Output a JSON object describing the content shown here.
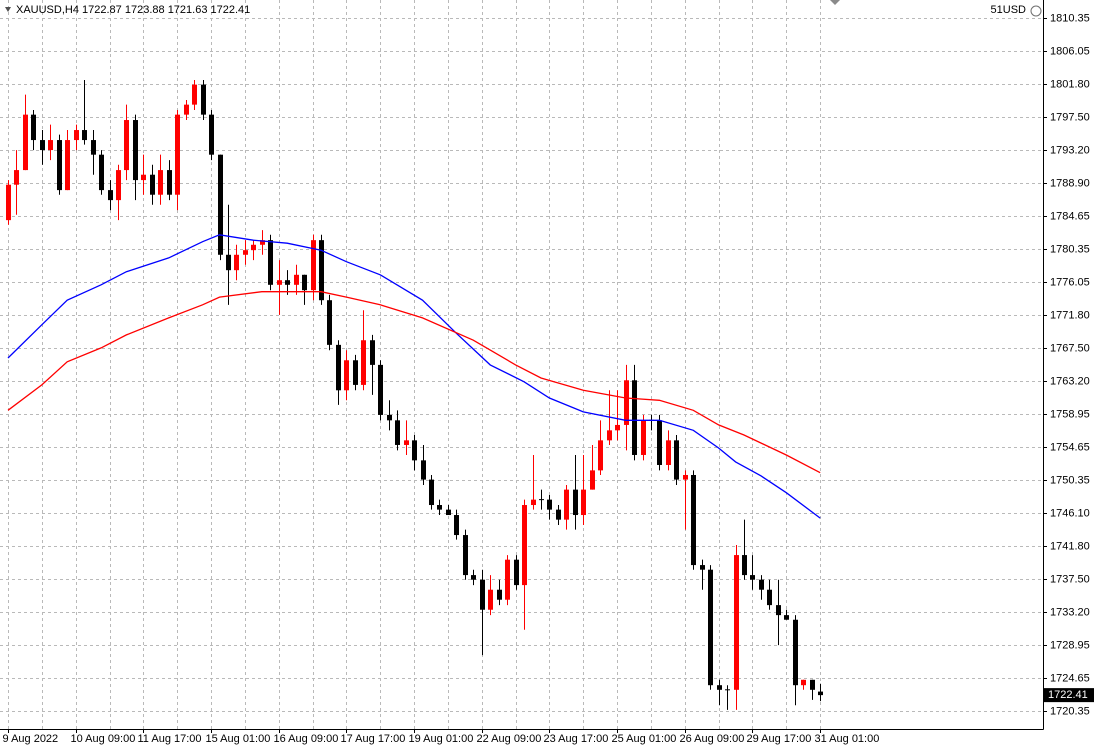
{
  "chart_data": {
    "type": "candlestick",
    "header": {
      "symbol": "XAUUSD,H4",
      "open": 1722.87,
      "high": 1723.88,
      "low": 1721.63,
      "close": 1722.41,
      "account": "51USD"
    },
    "categories": [
      "9 Aug 2022",
      null,
      null,
      null,
      null,
      null,
      null,
      null,
      "10 Aug 09:00",
      null,
      null,
      null,
      null,
      null,
      null,
      null,
      "11 Aug 17:00",
      null,
      null,
      null,
      null,
      null,
      null,
      null,
      "15 Aug 01:00",
      null,
      null,
      null,
      null,
      null,
      null,
      null,
      "16 Aug 09:00",
      null,
      null,
      null,
      null,
      null,
      null,
      null,
      "17 Aug 17:00",
      null,
      null,
      null,
      null,
      null,
      null,
      null,
      "19 Aug 01:00",
      null,
      null,
      null,
      null,
      null,
      null,
      null,
      "22 Aug 09:00",
      null,
      null,
      null,
      null,
      null,
      null,
      null,
      "23 Aug 17:00",
      null,
      null,
      null,
      null,
      null,
      null,
      null,
      "25 Aug 01:00",
      null,
      null,
      null,
      null,
      null,
      null,
      null,
      "26 Aug 09:00",
      null,
      null,
      null,
      null,
      null,
      null,
      null,
      "29 Aug 17:00",
      null,
      null,
      null,
      null,
      null,
      null,
      null,
      "31 Aug 01:00"
    ],
    "open": [
      1784.1,
      1788.7,
      1790.6,
      1797.8,
      1794.5,
      1793.2,
      1794.5,
      1788.0,
      1794.5,
      1795.8,
      1794.5,
      1792.6,
      1788.0,
      1786.7,
      1790.6,
      1797.1,
      1789.3,
      1790.0,
      1787.4,
      1790.6,
      1787.4,
      1797.8,
      1799.1,
      1801.7,
      1797.8,
      1792.6,
      1779.6,
      1777.6,
      1779.6,
      1780.2,
      1780.9,
      1781.5,
      1775.7,
      1776.3,
      1775.7,
      1777.0,
      1775.0,
      1781.5,
      1773.7,
      1767.9,
      1762.0,
      1765.9,
      1762.7,
      1768.5,
      1765.3,
      1758.8,
      1758.1,
      1754.9,
      1755.5,
      1752.9,
      1750.4,
      1747.1,
      1746.5,
      1745.8,
      1743.2,
      1738.0,
      1737.4,
      1733.5,
      1736.1,
      1734.8,
      1740.0,
      1736.7,
      1747.1,
      1747.8,
      1747.8,
      1746.5,
      1745.2,
      1749.1,
      1745.8,
      1749.1,
      1751.6,
      1755.5,
      1756.8,
      1757.5,
      1763.3,
      1753.6,
      1758.1,
      1758.1,
      1752.3,
      1755.5,
      1750.4,
      1751.0,
      1739.3,
      1738.7,
      1723.7,
      1723.1,
      1723.1,
      1740.6,
      1738.0,
      1737.4,
      1736.1,
      1734.1,
      1732.8,
      1732.2,
      1723.7,
      1724.4,
      1722.87
    ],
    "high": [
      1789.3,
      1793.2,
      1800.4,
      1798.4,
      1795.8,
      1796.5,
      1795.2,
      1795.8,
      1796.5,
      1802.3,
      1795.8,
      1793.2,
      1789.3,
      1791.3,
      1799.1,
      1797.8,
      1792.6,
      1791.3,
      1792.6,
      1791.9,
      1798.4,
      1799.7,
      1802.3,
      1802.3,
      1798.4,
      1792.6,
      1786.1,
      1780.9,
      1781.5,
      1781.5,
      1782.8,
      1782.2,
      1778.9,
      1777.6,
      1778.3,
      1777.0,
      1782.2,
      1782.2,
      1774.4,
      1768.5,
      1767.2,
      1766.6,
      1772.4,
      1769.2,
      1765.9,
      1760.7,
      1759.4,
      1758.1,
      1756.2,
      1754.9,
      1751.0,
      1747.8,
      1747.1,
      1746.5,
      1743.9,
      1738.7,
      1738.7,
      1738.0,
      1737.4,
      1740.6,
      1740.6,
      1747.8,
      1753.6,
      1749.1,
      1748.4,
      1747.1,
      1749.7,
      1753.6,
      1753.6,
      1754.9,
      1758.1,
      1762.0,
      1762.0,
      1765.3,
      1765.3,
      1758.8,
      1758.8,
      1758.8,
      1756.8,
      1756.2,
      1751.6,
      1751.6,
      1740.0,
      1739.3,
      1724.4,
      1723.7,
      1741.9,
      1745.2,
      1740.6,
      1738.0,
      1737.4,
      1737.4,
      1733.5,
      1732.8,
      1724.4,
      1724.4,
      1723.88
    ],
    "low": [
      1783.5,
      1784.8,
      1790.6,
      1793.2,
      1791.3,
      1791.9,
      1787.4,
      1788.0,
      1793.2,
      1793.9,
      1790.0,
      1787.4,
      1785.4,
      1784.1,
      1789.3,
      1786.7,
      1787.4,
      1786.1,
      1786.1,
      1786.7,
      1785.4,
      1797.1,
      1798.4,
      1797.1,
      1791.9,
      1778.9,
      1773.1,
      1776.3,
      1778.3,
      1778.9,
      1779.6,
      1775.0,
      1771.8,
      1774.4,
      1774.4,
      1773.1,
      1773.7,
      1773.1,
      1767.2,
      1760.1,
      1760.7,
      1762.0,
      1762.0,
      1761.4,
      1758.1,
      1756.8,
      1754.2,
      1753.6,
      1751.6,
      1749.7,
      1746.5,
      1745.8,
      1745.8,
      1742.6,
      1737.4,
      1736.7,
      1727.6,
      1732.8,
      1734.1,
      1734.1,
      1736.1,
      1730.9,
      1746.5,
      1746.5,
      1745.2,
      1744.5,
      1743.9,
      1743.9,
      1744.5,
      1749.1,
      1751.0,
      1754.9,
      1755.5,
      1754.2,
      1752.9,
      1752.9,
      1756.8,
      1751.6,
      1751.6,
      1749.7,
      1743.9,
      1738.7,
      1736.1,
      1723.1,
      1721.1,
      1720.5,
      1720.5,
      1737.4,
      1736.1,
      1734.8,
      1733.5,
      1728.9,
      1732.2,
      1721.1,
      1723.1,
      1721.8,
      1721.63
    ],
    "close": [
      1788.7,
      1790.6,
      1797.8,
      1794.5,
      1793.2,
      1794.5,
      1788.0,
      1794.5,
      1795.8,
      1794.5,
      1792.6,
      1788.0,
      1786.7,
      1790.6,
      1797.1,
      1789.3,
      1790.0,
      1787.4,
      1790.6,
      1787.4,
      1797.8,
      1799.1,
      1801.7,
      1797.8,
      1792.6,
      1779.6,
      1777.6,
      1779.6,
      1780.2,
      1780.9,
      1781.5,
      1775.7,
      1776.3,
      1775.7,
      1777.0,
      1775.0,
      1781.5,
      1773.7,
      1767.9,
      1762.0,
      1765.9,
      1762.7,
      1768.5,
      1765.3,
      1758.8,
      1758.1,
      1754.9,
      1755.5,
      1752.9,
      1750.4,
      1747.1,
      1746.5,
      1745.8,
      1743.2,
      1738.0,
      1737.4,
      1733.5,
      1736.1,
      1734.8,
      1740.0,
      1736.7,
      1747.1,
      1747.8,
      1747.8,
      1746.5,
      1745.2,
      1749.1,
      1745.8,
      1749.1,
      1751.6,
      1755.5,
      1756.8,
      1757.5,
      1763.3,
      1753.6,
      1758.1,
      1758.1,
      1752.3,
      1755.5,
      1750.4,
      1751.0,
      1739.3,
      1738.7,
      1723.7,
      1723.1,
      1723.1,
      1740.6,
      1738.0,
      1737.4,
      1736.1,
      1734.1,
      1732.8,
      1732.2,
      1723.7,
      1724.4,
      1723.1,
      1722.41
    ],
    "up_color": "#ff0000",
    "down_color": "#000000",
    "lines": [
      {
        "color": "#0000ff",
        "x": [
          0,
          4,
          7,
          11,
          14,
          19,
          23,
          25,
          29,
          33,
          37,
          40,
          44,
          49,
          53,
          57,
          61,
          64,
          68,
          73,
          77,
          81,
          84,
          86,
          89,
          92,
          96
        ],
        "values": [
          1766.2,
          1770.5,
          1773.7,
          1775.7,
          1777.4,
          1779.2,
          1781.3,
          1782.2,
          1781.5,
          1781.1,
          1780.2,
          1778.7,
          1777.0,
          1773.7,
          1769.4,
          1765.3,
          1763.1,
          1761.0,
          1759.2,
          1758.1,
          1758.1,
          1756.8,
          1754.5,
          1752.7,
          1750.9,
          1748.7,
          1745.4
        ]
      },
      {
        "color": "#ff0000",
        "x": [
          0,
          4,
          7,
          11,
          14,
          19,
          23,
          25,
          30,
          37,
          40,
          44,
          49,
          55,
          60,
          63,
          68,
          73,
          77,
          81,
          84,
          87,
          92,
          96
        ],
        "values": [
          1759.4,
          1762.7,
          1765.7,
          1767.5,
          1769.2,
          1771.4,
          1773.1,
          1774.1,
          1774.8,
          1774.8,
          1774.1,
          1773.1,
          1771.4,
          1768.5,
          1765.3,
          1763.6,
          1762.0,
          1761.0,
          1760.7,
          1759.4,
          1757.5,
          1756.2,
          1753.6,
          1751.3
        ]
      }
    ],
    "last_price": 1722.41,
    "ylim": [
      1718.01,
      1812.69
    ],
    "yticks": [
      1810.35,
      1806.05,
      {
        "value": 1801.8,
        "label": "1801.80"
      },
      {
        "value": 1797.5,
        "label": "1797.50"
      },
      {
        "value": 1793.2,
        "label": "1793.20"
      },
      {
        "value": 1788.9,
        "label": "1788.90"
      },
      1784.65,
      1780.35,
      1776.05,
      {
        "value": 1771.8,
        "label": "1771.80"
      },
      {
        "value": 1767.5,
        "label": "1767.50"
      },
      {
        "value": 1763.2,
        "label": "1763.20"
      },
      1758.95,
      1754.65,
      1750.35,
      {
        "value": 1746.1,
        "label": "1746.10"
      },
      {
        "value": 1741.8,
        "label": "1741.80"
      },
      {
        "value": 1737.5,
        "label": "1737.50"
      },
      {
        "value": 1733.2,
        "label": "1733.20"
      },
      1728.95,
      1724.65,
      1720.35
    ],
    "grid": true
  }
}
